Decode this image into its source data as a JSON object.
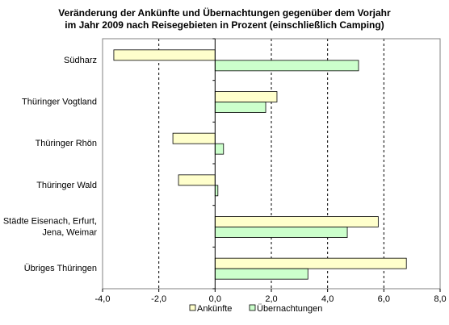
{
  "chart_data": {
    "type": "bar",
    "orientation": "horizontal",
    "title_lines": [
      "Veränderung der Ankünfte und Übernachtungen gegenüber dem Vorjahr",
      "im Jahr 2009 nach Reisegebieten in Prozent (einschließlich Camping)"
    ],
    "categories": [
      [
        "Südharz"
      ],
      [
        "Thüringer Vogtland"
      ],
      [
        "Thüringer Rhön"
      ],
      [
        "Thüringer Wald"
      ],
      [
        "Städte Eisenach, Erfurt,",
        "Jena, Weimar"
      ],
      [
        "Übriges Thüringen"
      ]
    ],
    "series": [
      {
        "name": "Ankünfte",
        "color": "#ffffcc",
        "values": [
          -3.6,
          2.2,
          -1.5,
          -1.3,
          5.8,
          6.8
        ]
      },
      {
        "name": "Übernachtungen",
        "color": "#ccffcc",
        "values": [
          5.1,
          1.8,
          0.3,
          0.1,
          4.7,
          3.3
        ]
      }
    ],
    "xlim": [
      -4.0,
      8.0
    ],
    "xticks": [
      -4.0,
      -2.0,
      0.0,
      2.0,
      4.0,
      6.0,
      8.0
    ],
    "xtick_labels": [
      "-4,0",
      "-2,0",
      "0,0",
      "2,0",
      "4,0",
      "6,0",
      "8,0"
    ],
    "gridlines": "dashed vertical at major ticks",
    "legend": "bottom"
  }
}
